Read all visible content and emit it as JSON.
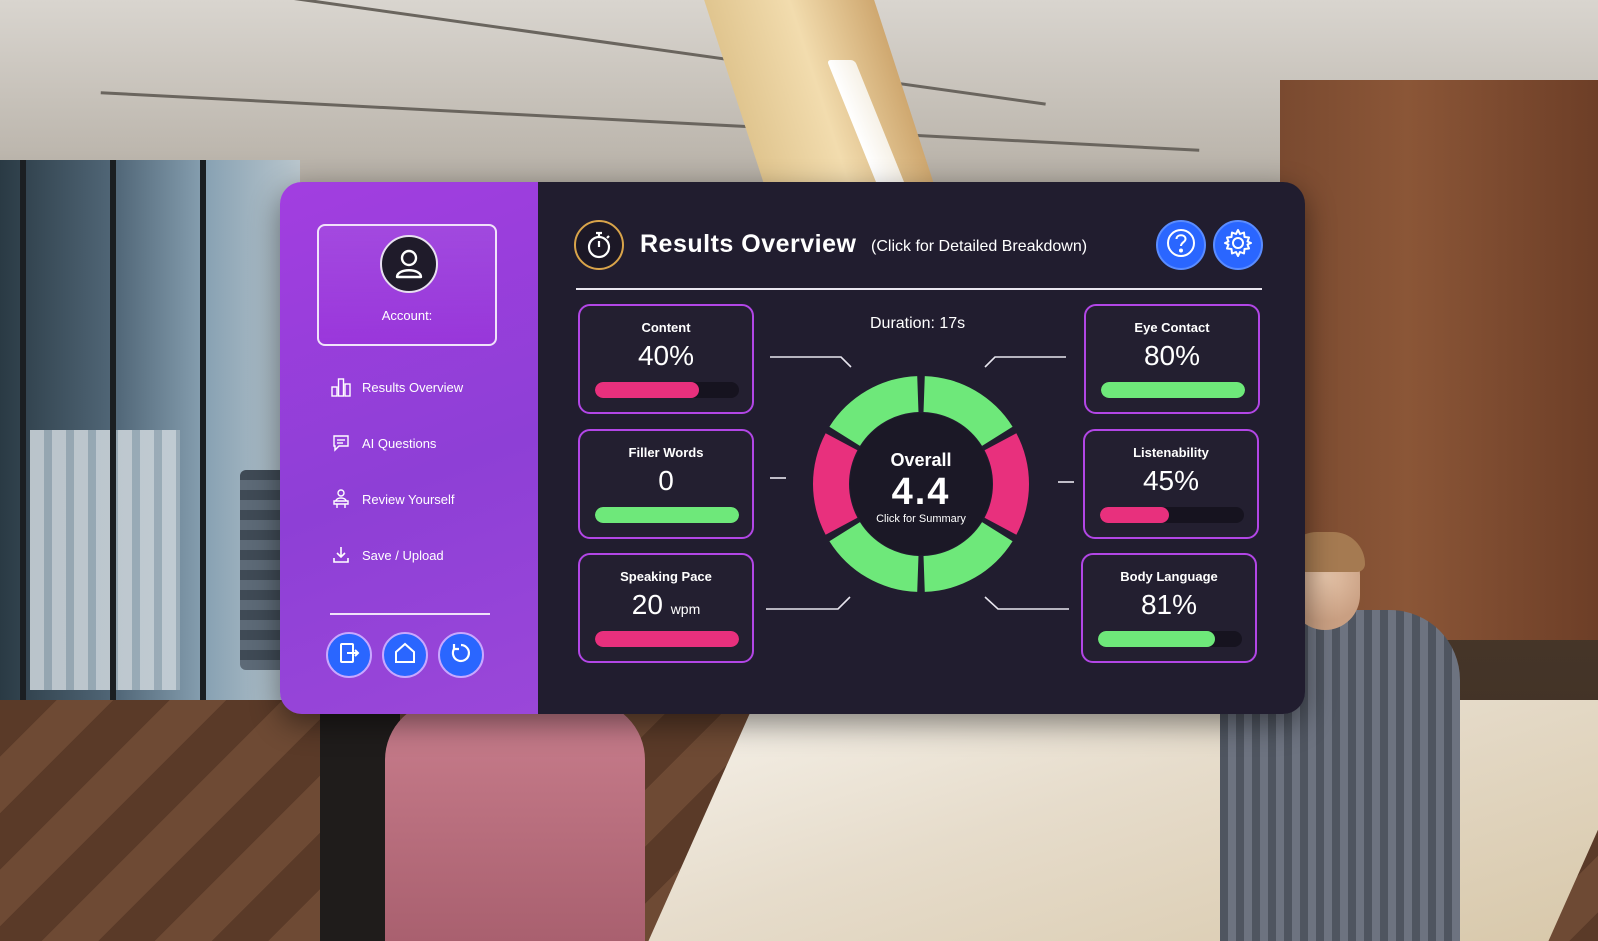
{
  "sidebar": {
    "account_label": "Account:",
    "nav": [
      {
        "label": "Results Overview",
        "icon": "bar-chart-icon"
      },
      {
        "label": "AI Questions",
        "icon": "ai-chat-icon"
      },
      {
        "label": "Review Yourself",
        "icon": "review-person-icon"
      },
      {
        "label": "Save / Upload",
        "icon": "download-icon"
      }
    ],
    "buttons": [
      {
        "icon": "exit-icon"
      },
      {
        "icon": "home-icon"
      },
      {
        "icon": "restart-icon"
      }
    ]
  },
  "header": {
    "title": "Results Overview",
    "subtitle": "(Click for Detailed Breakdown)",
    "help_icon": "help-icon",
    "settings_icon": "settings-gear-icon",
    "timer_icon": "stopwatch-icon"
  },
  "duration": "Duration: 17s",
  "overall": {
    "label": "Overall",
    "score": "4.4",
    "hint": "Click for Summary"
  },
  "metrics": {
    "content": {
      "name": "Content",
      "value": "40%",
      "unit": "",
      "level": 0.72,
      "color": "#e8307d"
    },
    "filler_words": {
      "name": "Filler Words",
      "value": "0",
      "unit": "",
      "level": 1.0,
      "color": "#6ee87a"
    },
    "speaking_pace": {
      "name": "Speaking Pace",
      "value": "20",
      "unit": "wpm",
      "level": 1.0,
      "color": "#e8307d"
    },
    "eye_contact": {
      "name": "Eye Contact",
      "value": "80%",
      "unit": "",
      "level": 1.0,
      "color": "#6ee87a"
    },
    "listenability": {
      "name": "Listenability",
      "value": "45%",
      "unit": "",
      "level": 0.48,
      "color": "#e8307d"
    },
    "body_language": {
      "name": "Body Language",
      "value": "81%",
      "unit": "",
      "level": 0.81,
      "color": "#6ee87a"
    }
  },
  "donut_segments": [
    "#6ee87a",
    "#e8307d",
    "#6ee87a",
    "#6ee87a",
    "#e8307d",
    "#6ee87a"
  ]
}
